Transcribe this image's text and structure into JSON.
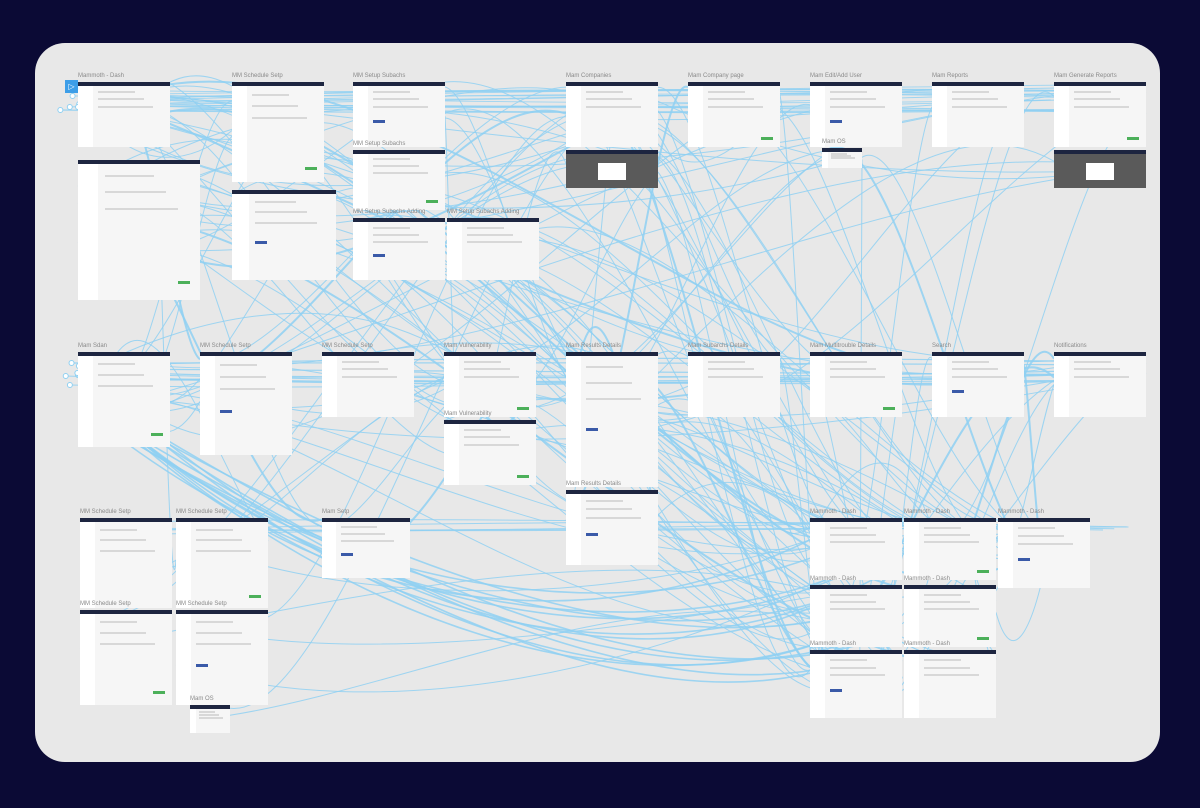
{
  "app": {
    "view": "prototype-wiring",
    "accent": "#8fd0f2",
    "background": "#0b0a35",
    "canvas": "#e8e8e8"
  },
  "home_icon": "play-triangle-icon",
  "artboards": [
    "Mammoth - Dash",
    "MM Schedule Setp",
    "MM Setup Subachs",
    "Mam Companies",
    "Mam Company page",
    "Mam Edit/Add User",
    "Mam Reports",
    "Mam Generate Reports",
    "",
    "",
    "MM Setup Subachs",
    "MM Setup Subachs Adding",
    "MM Setup Subachs Adding",
    "",
    "",
    "Mam OS",
    "Mam Sdan",
    "MM Schedule Setp",
    "MM Schedule Setp",
    "Mam Vulnerability",
    "Mam Results Details",
    "Mam Subarchs Details",
    "Mam Multitrouble Details",
    "Search",
    "Notifications",
    "Mam Vulnerability",
    "Mam Results Details",
    "MM Schedule Setp",
    "MM Schedule Setp",
    "Mam Setp",
    "Mammoth - Dash",
    "Mammoth - Dash",
    "Mammoth - Dash",
    "Mammoth - Dash",
    "Mammoth - Dash",
    "Mammoth - Dash",
    "Mammoth - Dash",
    "MM Schedule Setp",
    "MM Schedule Setp",
    "Mam OS"
  ]
}
